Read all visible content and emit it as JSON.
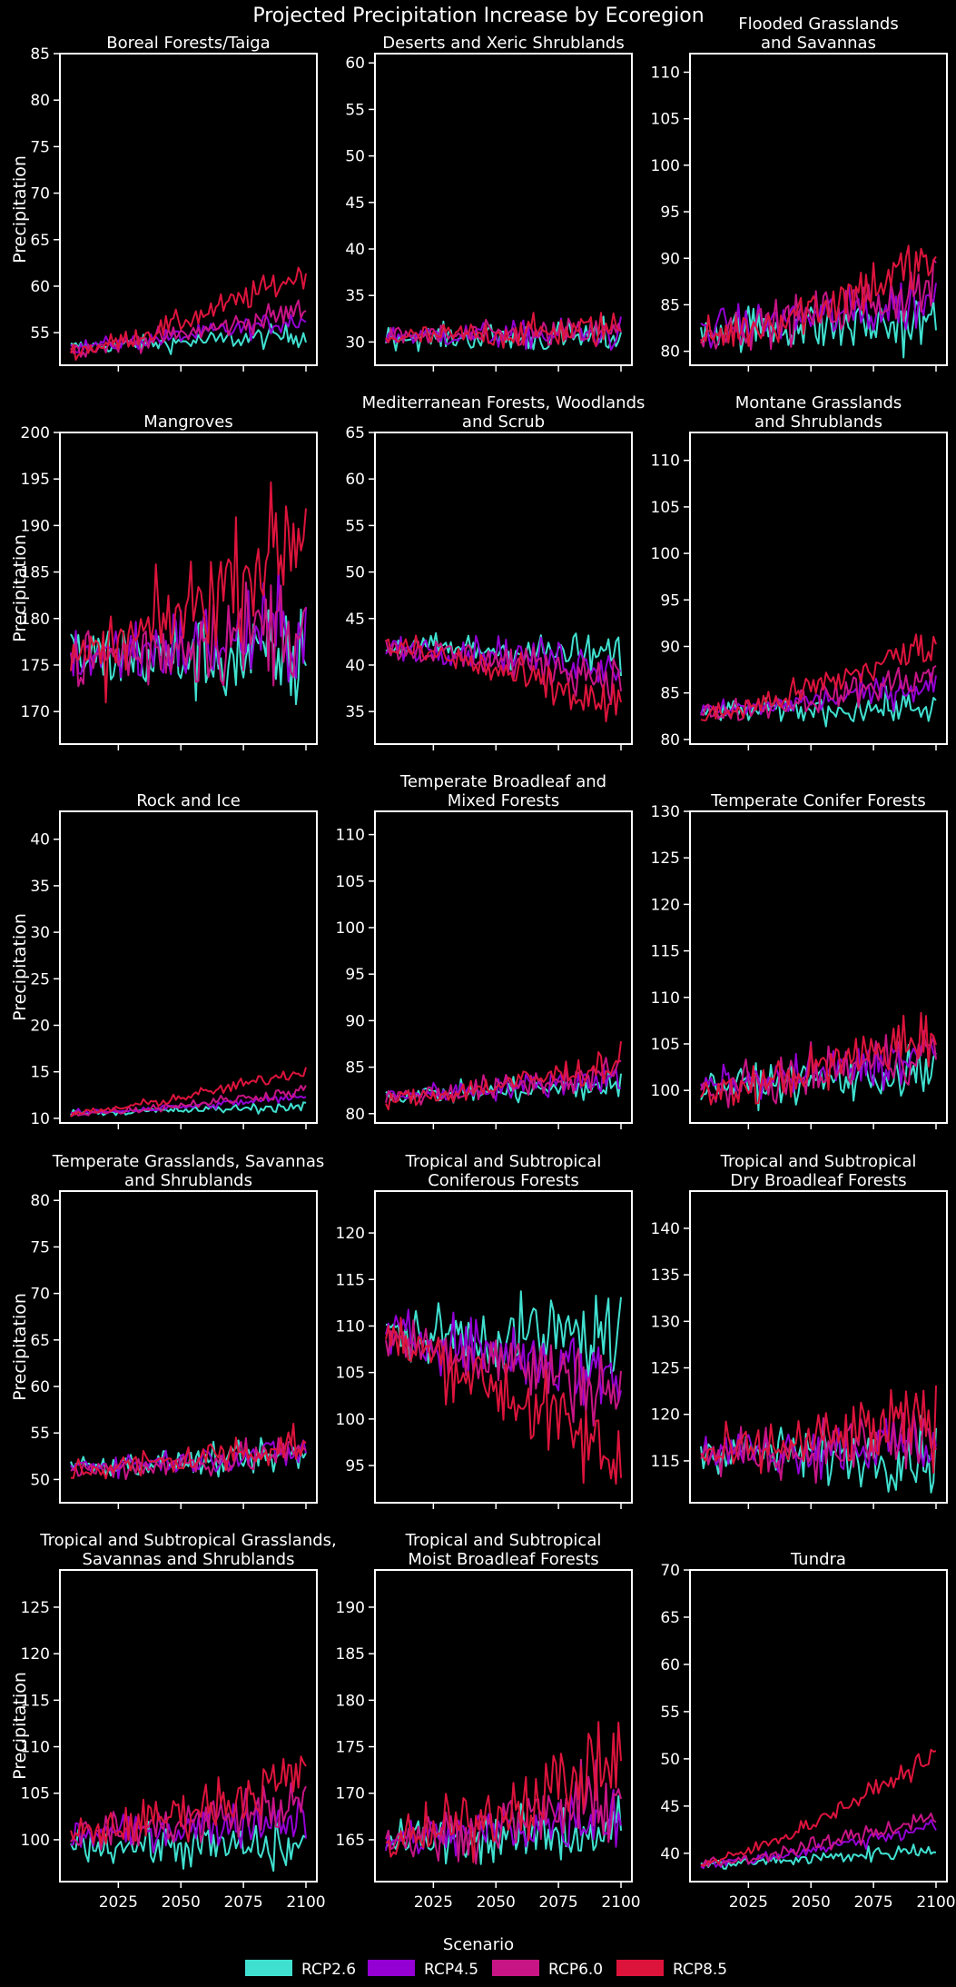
{
  "chart_data": {
    "type": "line",
    "title": "Projected Precipitation Increase by Ecoregion",
    "x_ticks": [
      2025,
      2050,
      2075,
      2100
    ],
    "x_range": [
      2006,
      2100
    ],
    "legend": {
      "title": "Scenario",
      "position": "bottom",
      "entries": [
        {
          "name": "RCP2.6",
          "color": "#40e0d0"
        },
        {
          "name": "RCP4.5",
          "color": "#9400d3"
        },
        {
          "name": "RCP6.0",
          "color": "#c71585"
        },
        {
          "name": "RCP8.5",
          "color": "#dc143c"
        }
      ]
    },
    "panels": [
      {
        "title": [
          "Boreal Forests/Taiga"
        ],
        "ylabel": "Precipitation",
        "ylim": [
          51.5,
          85
        ],
        "yticks": [
          55,
          60,
          65,
          70,
          75,
          80,
          85
        ],
        "show_x": false,
        "series": [
          {
            "name": "RCP2.6",
            "start": 53.5,
            "end": 54.8,
            "noise": 0.7
          },
          {
            "name": "RCP4.5",
            "start": 53.5,
            "end": 56.5,
            "noise": 0.7
          },
          {
            "name": "RCP6.0",
            "start": 53.2,
            "end": 57.5,
            "noise": 0.8
          },
          {
            "name": "RCP8.5",
            "start": 53.0,
            "end": 61.5,
            "noise": 0.9
          }
        ]
      },
      {
        "title": [
          "Deserts and Xeric Shrublands"
        ],
        "ylabel": "",
        "ylim": [
          27.5,
          61
        ],
        "yticks": [
          30,
          35,
          40,
          45,
          50,
          55,
          60
        ],
        "show_x": false,
        "series": [
          {
            "name": "RCP2.6",
            "start": 30.5,
            "end": 30.5,
            "noise": 1.1
          },
          {
            "name": "RCP4.5",
            "start": 30.7,
            "end": 30.8,
            "noise": 1.0
          },
          {
            "name": "RCP6.0",
            "start": 30.6,
            "end": 31.0,
            "noise": 1.0
          },
          {
            "name": "RCP8.5",
            "start": 30.5,
            "end": 31.5,
            "noise": 1.1
          }
        ]
      },
      {
        "title": [
          "Flooded Grasslands",
          "and Savannas"
        ],
        "ylabel": "",
        "ylim": [
          78.5,
          112
        ],
        "yticks": [
          80,
          85,
          90,
          95,
          100,
          105,
          110
        ],
        "show_x": false,
        "series": [
          {
            "name": "RCP2.6",
            "start": 82.5,
            "end": 83.0,
            "noise": 2.0
          },
          {
            "name": "RCP4.5",
            "start": 82.5,
            "end": 85.5,
            "noise": 1.8
          },
          {
            "name": "RCP6.0",
            "start": 82.0,
            "end": 87.0,
            "noise": 1.8
          },
          {
            "name": "RCP8.5",
            "start": 81.5,
            "end": 90.0,
            "noise": 2.0
          }
        ]
      },
      {
        "title": [
          "Mangroves"
        ],
        "ylabel": "Precipitation",
        "ylim": [
          166.5,
          200
        ],
        "yticks": [
          170,
          175,
          180,
          185,
          190,
          195,
          200
        ],
        "show_x": false,
        "series": [
          {
            "name": "RCP2.6",
            "start": 176,
            "end": 175.5,
            "noise": 3.2
          },
          {
            "name": "RCP4.5",
            "start": 176,
            "end": 179,
            "noise": 3.2
          },
          {
            "name": "RCP6.0",
            "start": 175.5,
            "end": 180,
            "noise": 3.4
          },
          {
            "name": "RCP8.5",
            "start": 175,
            "end": 190,
            "noise": 3.6
          }
        ]
      },
      {
        "title": [
          "Mediterranean Forests, Woodlands",
          "and Scrub"
        ],
        "ylabel": "",
        "ylim": [
          31.5,
          65
        ],
        "yticks": [
          35,
          40,
          45,
          50,
          55,
          60,
          65
        ],
        "show_x": false,
        "series": [
          {
            "name": "RCP2.6",
            "start": 42.0,
            "end": 41.0,
            "noise": 1.3
          },
          {
            "name": "RCP4.5",
            "start": 42.0,
            "end": 40.0,
            "noise": 1.3
          },
          {
            "name": "RCP6.0",
            "start": 41.8,
            "end": 38.5,
            "noise": 1.3
          },
          {
            "name": "RCP8.5",
            "start": 42.0,
            "end": 35.0,
            "noise": 1.5
          }
        ]
      },
      {
        "title": [
          "Montane Grasslands",
          "and Shrublands"
        ],
        "ylabel": "",
        "ylim": [
          79.5,
          113
        ],
        "yticks": [
          80,
          85,
          90,
          95,
          100,
          105,
          110
        ],
        "show_x": false,
        "series": [
          {
            "name": "RCP2.6",
            "start": 83.0,
            "end": 83.5,
            "noise": 1.0
          },
          {
            "name": "RCP4.5",
            "start": 83.0,
            "end": 86.0,
            "noise": 1.0
          },
          {
            "name": "RCP6.0",
            "start": 82.8,
            "end": 87.0,
            "noise": 1.1
          },
          {
            "name": "RCP8.5",
            "start": 82.5,
            "end": 90.5,
            "noise": 1.2
          }
        ]
      },
      {
        "title": [
          "Rock and Ice"
        ],
        "ylabel": "Precipitation",
        "ylim": [
          9.5,
          43
        ],
        "yticks": [
          10,
          15,
          20,
          25,
          30,
          35,
          40
        ],
        "show_x": false,
        "series": [
          {
            "name": "RCP2.6",
            "start": 10.6,
            "end": 11.3,
            "noise": 0.3
          },
          {
            "name": "RCP4.5",
            "start": 10.6,
            "end": 12.3,
            "noise": 0.3
          },
          {
            "name": "RCP6.0",
            "start": 10.5,
            "end": 13.0,
            "noise": 0.35
          },
          {
            "name": "RCP8.5",
            "start": 10.5,
            "end": 15.2,
            "noise": 0.4
          }
        ]
      },
      {
        "title": [
          "Temperate Broadleaf and",
          "Mixed Forests"
        ],
        "ylabel": "",
        "ylim": [
          79,
          112.5
        ],
        "yticks": [
          80,
          85,
          90,
          95,
          100,
          105,
          110
        ],
        "show_x": false,
        "series": [
          {
            "name": "RCP2.6",
            "start": 82.0,
            "end": 83.0,
            "noise": 0.9
          },
          {
            "name": "RCP4.5",
            "start": 82.0,
            "end": 84.0,
            "noise": 0.9
          },
          {
            "name": "RCP6.0",
            "start": 81.8,
            "end": 84.5,
            "noise": 1.0
          },
          {
            "name": "RCP8.5",
            "start": 81.5,
            "end": 85.5,
            "noise": 1.0
          }
        ]
      },
      {
        "title": [
          "Temperate Conifer Forests"
        ],
        "ylabel": "",
        "ylim": [
          96.5,
          130
        ],
        "yticks": [
          100,
          105,
          110,
          115,
          120,
          125,
          130
        ],
        "show_x": false,
        "series": [
          {
            "name": "RCP2.6",
            "start": 100.5,
            "end": 102.0,
            "noise": 1.6
          },
          {
            "name": "RCP4.5",
            "start": 100.5,
            "end": 104.0,
            "noise": 1.6
          },
          {
            "name": "RCP6.0",
            "start": 100.0,
            "end": 104.5,
            "noise": 1.7
          },
          {
            "name": "RCP8.5",
            "start": 99.5,
            "end": 106.5,
            "noise": 1.8
          }
        ]
      },
      {
        "title": [
          "Temperate Grasslands, Savannas",
          "and Shrublands"
        ],
        "ylabel": "Precipitation",
        "ylim": [
          47.5,
          81
        ],
        "yticks": [
          50,
          55,
          60,
          65,
          70,
          75,
          80
        ],
        "show_x": false,
        "series": [
          {
            "name": "RCP2.6",
            "start": 51.5,
            "end": 52.5,
            "noise": 1.0
          },
          {
            "name": "RCP4.5",
            "start": 51.5,
            "end": 53.0,
            "noise": 1.0
          },
          {
            "name": "RCP6.0",
            "start": 51.0,
            "end": 53.0,
            "noise": 1.1
          },
          {
            "name": "RCP8.5",
            "start": 51.0,
            "end": 54.0,
            "noise": 1.3
          }
        ]
      },
      {
        "title": [
          "Tropical and Subtropical",
          "Coniferous Forests"
        ],
        "ylabel": "",
        "ylim": [
          91,
          124.5
        ],
        "yticks": [
          95,
          100,
          105,
          110,
          115,
          120
        ],
        "show_x": false,
        "series": [
          {
            "name": "RCP2.6",
            "start": 109.0,
            "end": 109.0,
            "noise": 2.6
          },
          {
            "name": "RCP4.5",
            "start": 109.0,
            "end": 104.5,
            "noise": 2.4
          },
          {
            "name": "RCP6.0",
            "start": 108.5,
            "end": 103.0,
            "noise": 2.6
          },
          {
            "name": "RCP8.5",
            "start": 108.5,
            "end": 95.0,
            "noise": 2.8
          }
        ]
      },
      {
        "title": [
          "Tropical and Subtropical",
          "Dry Broadleaf Forests"
        ],
        "ylabel": "",
        "ylim": [
          110.5,
          144
        ],
        "yticks": [
          115,
          120,
          125,
          130,
          135,
          140
        ],
        "show_x": false,
        "series": [
          {
            "name": "RCP2.6",
            "start": 116.0,
            "end": 115.5,
            "noise": 2.0
          },
          {
            "name": "RCP4.5",
            "start": 116.0,
            "end": 117.0,
            "noise": 2.0
          },
          {
            "name": "RCP6.0",
            "start": 115.5,
            "end": 117.5,
            "noise": 2.2
          },
          {
            "name": "RCP8.5",
            "start": 115.5,
            "end": 119.5,
            "noise": 2.4
          }
        ]
      },
      {
        "title": [
          "Tropical and Subtropical Grasslands,",
          "Savannas and Shrublands"
        ],
        "ylabel": "Precipitation",
        "ylim": [
          95.5,
          129
        ],
        "yticks": [
          100,
          105,
          110,
          115,
          120,
          125
        ],
        "show_x": true,
        "series": [
          {
            "name": "RCP2.6",
            "start": 99.5,
            "end": 99.0,
            "noise": 1.6
          },
          {
            "name": "RCP4.5",
            "start": 100.5,
            "end": 102.5,
            "noise": 1.5
          },
          {
            "name": "RCP6.0",
            "start": 100.5,
            "end": 104.0,
            "noise": 1.6
          },
          {
            "name": "RCP8.5",
            "start": 100.5,
            "end": 107.0,
            "noise": 1.8
          }
        ]
      },
      {
        "title": [
          "Tropical and Subtropical",
          "Moist Broadleaf Forests"
        ],
        "ylabel": "",
        "ylim": [
          160.5,
          194
        ],
        "yticks": [
          165,
          170,
          175,
          180,
          185,
          190
        ],
        "show_x": true,
        "series": [
          {
            "name": "RCP2.6",
            "start": 165.0,
            "end": 166.0,
            "noise": 2.0
          },
          {
            "name": "RCP4.5",
            "start": 165.0,
            "end": 168.0,
            "noise": 2.0
          },
          {
            "name": "RCP6.0",
            "start": 165.0,
            "end": 169.5,
            "noise": 2.2
          },
          {
            "name": "RCP8.5",
            "start": 164.5,
            "end": 174.0,
            "noise": 2.6
          }
        ]
      },
      {
        "title": [
          "Tundra"
        ],
        "ylabel": "",
        "ylim": [
          37,
          70
        ],
        "yticks": [
          40,
          45,
          50,
          55,
          60,
          65,
          70
        ],
        "show_x": true,
        "series": [
          {
            "name": "RCP2.6",
            "start": 38.8,
            "end": 40.5,
            "noise": 0.5
          },
          {
            "name": "RCP4.5",
            "start": 38.8,
            "end": 43.0,
            "noise": 0.5
          },
          {
            "name": "RCP6.0",
            "start": 38.8,
            "end": 44.0,
            "noise": 0.6
          },
          {
            "name": "RCP8.5",
            "start": 38.8,
            "end": 50.5,
            "noise": 0.6
          }
        ]
      }
    ]
  }
}
